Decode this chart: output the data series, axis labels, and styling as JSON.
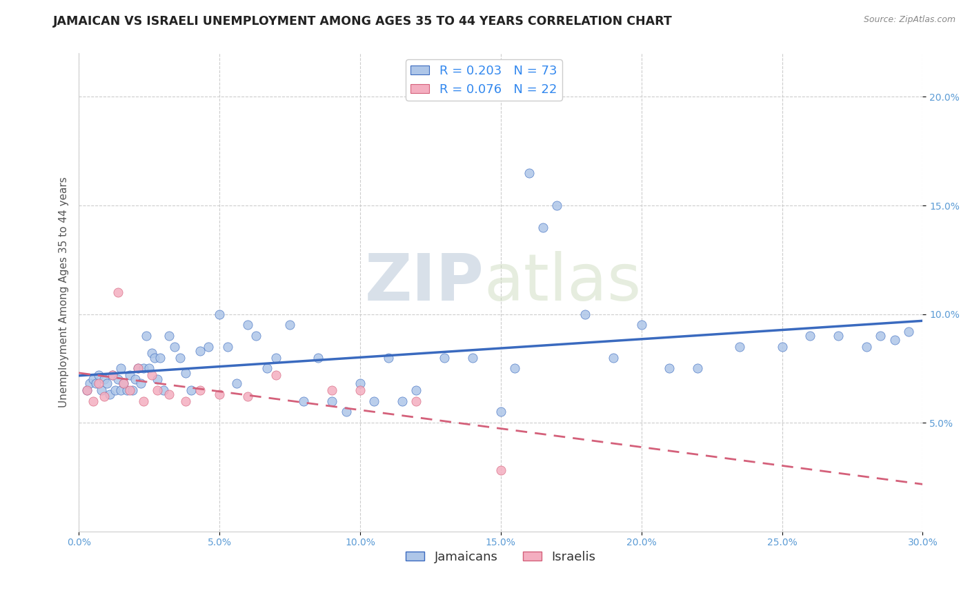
{
  "title": "JAMAICAN VS ISRAELI UNEMPLOYMENT AMONG AGES 35 TO 44 YEARS CORRELATION CHART",
  "source": "Source: ZipAtlas.com",
  "ylabel": "Unemployment Among Ages 35 to 44 years",
  "xlim": [
    0.0,
    0.3
  ],
  "ylim": [
    0.0,
    0.22
  ],
  "xticks": [
    0.0,
    0.05,
    0.1,
    0.15,
    0.2,
    0.25,
    0.3
  ],
  "yticks": [
    0.05,
    0.1,
    0.15,
    0.2
  ],
  "xtick_labels": [
    "0.0%",
    "5.0%",
    "10.0%",
    "15.0%",
    "20.0%",
    "25.0%",
    "30.0%"
  ],
  "ytick_labels": [
    "5.0%",
    "10.0%",
    "15.0%",
    "20.0%"
  ],
  "jamaican_color": "#aec6e8",
  "israeli_color": "#f4aec0",
  "trend_jamaican_color": "#3a6abf",
  "trend_israeli_color": "#d4607a",
  "watermark_zip": "ZIP",
  "watermark_atlas": "atlas",
  "r_jamaican": 0.203,
  "n_jamaican": 73,
  "r_israeli": 0.076,
  "n_israeli": 22,
  "jamaican_x": [
    0.003,
    0.004,
    0.005,
    0.006,
    0.007,
    0.008,
    0.009,
    0.01,
    0.011,
    0.012,
    0.013,
    0.014,
    0.015,
    0.015,
    0.016,
    0.017,
    0.018,
    0.019,
    0.02,
    0.021,
    0.022,
    0.023,
    0.024,
    0.025,
    0.026,
    0.027,
    0.028,
    0.029,
    0.03,
    0.032,
    0.034,
    0.036,
    0.038,
    0.04,
    0.043,
    0.046,
    0.05,
    0.053,
    0.056,
    0.06,
    0.063,
    0.067,
    0.07,
    0.075,
    0.08,
    0.085,
    0.09,
    0.095,
    0.1,
    0.105,
    0.11,
    0.115,
    0.12,
    0.13,
    0.14,
    0.15,
    0.155,
    0.16,
    0.165,
    0.17,
    0.18,
    0.19,
    0.2,
    0.21,
    0.22,
    0.235,
    0.25,
    0.26,
    0.27,
    0.28,
    0.285,
    0.29,
    0.295
  ],
  "jamaican_y": [
    0.065,
    0.068,
    0.07,
    0.068,
    0.072,
    0.065,
    0.07,
    0.068,
    0.063,
    0.072,
    0.065,
    0.07,
    0.065,
    0.075,
    0.068,
    0.065,
    0.072,
    0.065,
    0.07,
    0.075,
    0.068,
    0.075,
    0.09,
    0.075,
    0.082,
    0.08,
    0.07,
    0.08,
    0.065,
    0.09,
    0.085,
    0.08,
    0.073,
    0.065,
    0.083,
    0.085,
    0.1,
    0.085,
    0.068,
    0.095,
    0.09,
    0.075,
    0.08,
    0.095,
    0.06,
    0.08,
    0.06,
    0.055,
    0.068,
    0.06,
    0.08,
    0.06,
    0.065,
    0.08,
    0.08,
    0.055,
    0.075,
    0.165,
    0.14,
    0.15,
    0.1,
    0.08,
    0.095,
    0.075,
    0.075,
    0.085,
    0.085,
    0.09,
    0.09,
    0.085,
    0.09,
    0.088,
    0.092
  ],
  "israeli_x": [
    0.003,
    0.005,
    0.007,
    0.009,
    0.012,
    0.014,
    0.016,
    0.018,
    0.021,
    0.023,
    0.026,
    0.028,
    0.032,
    0.038,
    0.043,
    0.05,
    0.06,
    0.07,
    0.09,
    0.1,
    0.12,
    0.15
  ],
  "israeli_y": [
    0.065,
    0.06,
    0.068,
    0.062,
    0.072,
    0.11,
    0.068,
    0.065,
    0.075,
    0.06,
    0.072,
    0.065,
    0.063,
    0.06,
    0.065,
    0.063,
    0.062,
    0.072,
    0.065,
    0.065,
    0.06,
    0.028
  ],
  "background_color": "#ffffff",
  "grid_color": "#cccccc",
  "title_fontsize": 12.5,
  "label_fontsize": 11,
  "tick_fontsize": 10,
  "legend_fontsize": 13
}
